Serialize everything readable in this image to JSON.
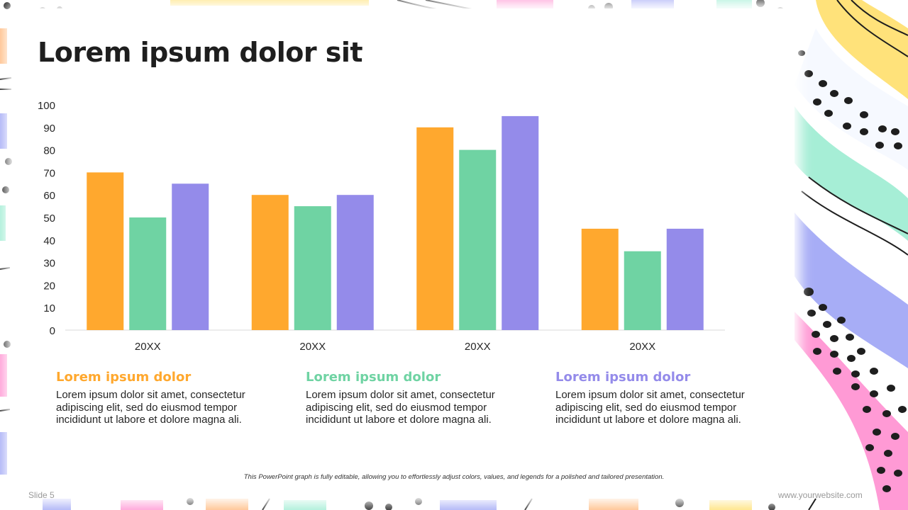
{
  "slide": {
    "title": "Lorem ipsum dolor sit",
    "footnote": "This PowerPoint graph is fully editable, allowing you to effortlessly adjust colors, values, and legends for a polished and tailored presentation.",
    "slide_number": "Slide 5",
    "website": "www.yourwebsite.com"
  },
  "columns": [
    {
      "heading": "Lorem ipsum dolor",
      "body": "Lorem ipsum dolor sit amet, consectetur adipiscing elit, sed do eiusmod tempor incididunt ut labore et dolore magna ali.",
      "color": "#FFA82E"
    },
    {
      "heading": "Lorem ipsum dolor",
      "body": "Lorem ipsum dolor sit amet, consectetur adipiscing elit, sed do eiusmod tempor incididunt ut labore et dolore magna ali.",
      "color": "#6FD3A3"
    },
    {
      "heading": "Lorem ipsum dolor",
      "body": "Lorem ipsum dolor sit amet, consectetur adipiscing elit, sed do eiusmod tempor incididunt ut labore et dolore magna ali.",
      "color": "#948BEA"
    }
  ],
  "chart_data": {
    "type": "bar",
    "categories": [
      "20XX",
      "20XX",
      "20XX",
      "20XX"
    ],
    "series": [
      {
        "values": [
          70,
          60,
          90,
          45
        ],
        "color": "#FFA82E"
      },
      {
        "values": [
          50,
          55,
          80,
          35
        ],
        "color": "#6FD3A3"
      },
      {
        "values": [
          65,
          60,
          95,
          45
        ],
        "color": "#948BEA"
      }
    ],
    "ylim": [
      0,
      100
    ],
    "yticks": [
      0,
      10,
      20,
      30,
      40,
      50,
      60,
      70,
      80,
      90,
      100
    ],
    "grid": false,
    "legend": "none"
  }
}
